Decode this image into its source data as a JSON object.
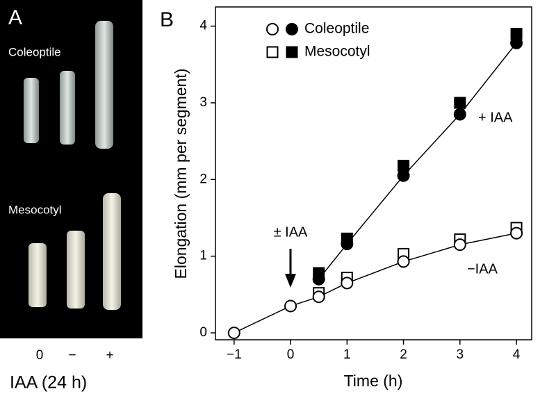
{
  "panel_a": {
    "label": "A",
    "rows": [
      "Coleoptile",
      "Mesocotyl"
    ],
    "treatments": [
      "0",
      "−",
      "+"
    ],
    "caption": "IAA (24 h)"
  },
  "chart_data": {
    "type": "scatter",
    "panel_label": "B",
    "x_label": "Time (h)",
    "y_label": "Elongation (mm per segment)",
    "x": [
      -1,
      0,
      0.5,
      1,
      2,
      3,
      4
    ],
    "series": [
      {
        "name": "Coleoptile",
        "marker": "circle",
        "filled": false,
        "line": true,
        "color": "#000000",
        "values": [
          0,
          0.35,
          0.47,
          0.65,
          0.93,
          1.15,
          1.3
        ]
      },
      {
        "name": "Coleoptile",
        "marker": "circle",
        "filled": true,
        "line": true,
        "color": "#000000",
        "values": [
          null,
          null,
          0.7,
          1.16,
          2.05,
          2.85,
          3.78
        ]
      },
      {
        "name": "Mesocotyl",
        "marker": "square",
        "filled": false,
        "line": false,
        "color": "#000000",
        "values": [
          null,
          null,
          0.52,
          0.72,
          1.03,
          1.22,
          1.37
        ]
      },
      {
        "name": "Mesocotyl",
        "marker": "square",
        "filled": true,
        "line": false,
        "color": "#000000",
        "values": [
          null,
          null,
          0.78,
          1.23,
          2.18,
          3.0,
          3.9
        ]
      }
    ],
    "xlim": [
      -1.33,
      4.27
    ],
    "ylim": [
      -0.09,
      4.25
    ],
    "xticks": [
      {
        "value": -1,
        "label": "−1"
      },
      0,
      1,
      2,
      3,
      4
    ],
    "yticks": [
      0,
      1,
      2,
      3,
      4
    ],
    "annotations": [
      "+ IAA",
      "−IAA",
      "± IAA"
    ],
    "legend": "upper left"
  }
}
